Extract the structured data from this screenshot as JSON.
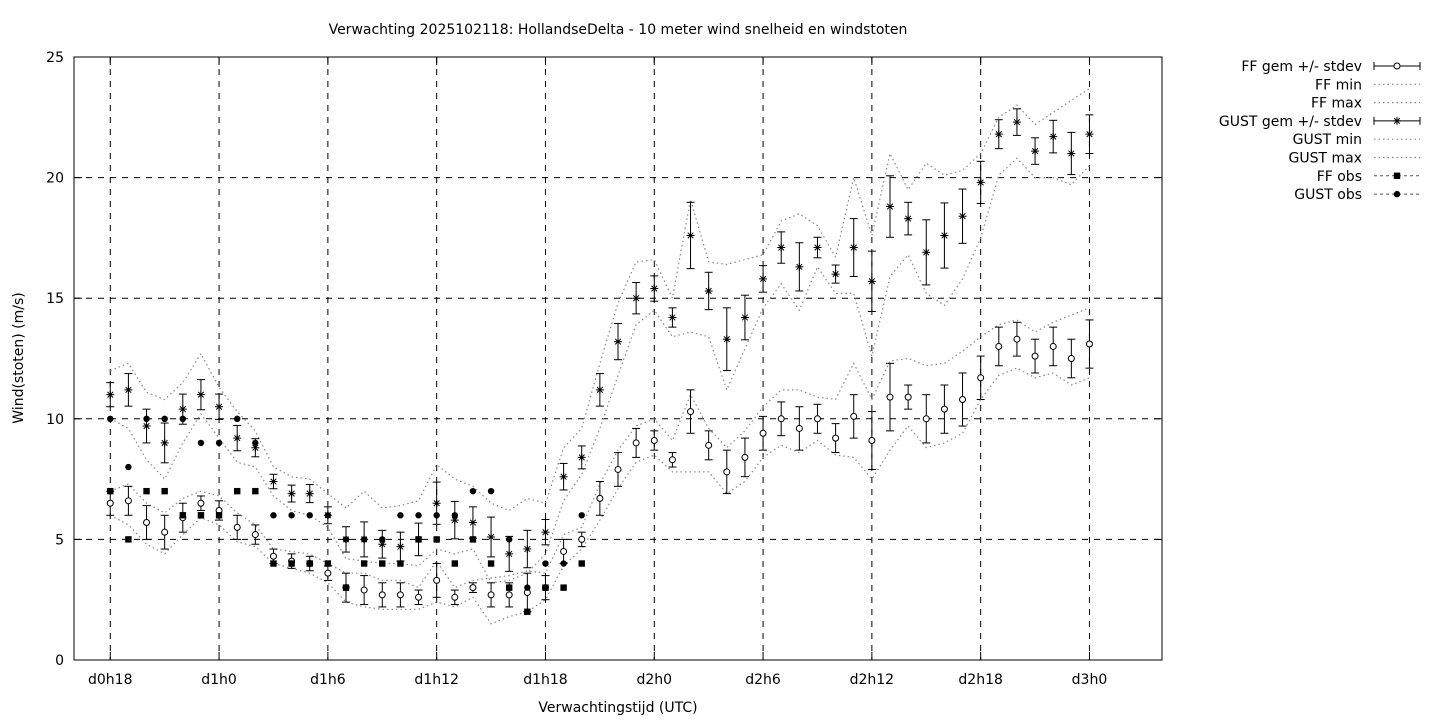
{
  "chart_data": {
    "type": "line",
    "title": "Verwachting 2025102118: HollandseDelta - 10 meter wind snelheid en windstoten",
    "xlabel": "Verwachtingstijd (UTC)",
    "ylabel": "Wind(stoten) (m/s)",
    "x_unit": "hours after d0h0",
    "xlim": [
      16,
      76
    ],
    "ylim": [
      0,
      25
    ],
    "y_ticks": [
      0,
      5,
      10,
      15,
      20,
      25
    ],
    "x_ticks": [
      {
        "x": 18,
        "label": "d0h18"
      },
      {
        "x": 24,
        "label": "d1h0"
      },
      {
        "x": 30,
        "label": "d1h6"
      },
      {
        "x": 36,
        "label": "d1h12"
      },
      {
        "x": 42,
        "label": "d1h18"
      },
      {
        "x": 48,
        "label": "d2h0"
      },
      {
        "x": 54,
        "label": "d2h6"
      },
      {
        "x": 60,
        "label": "d2h12"
      },
      {
        "x": 66,
        "label": "d2h18"
      },
      {
        "x": 72,
        "label": "d3h0"
      }
    ],
    "grid": true,
    "legend_position": "outside-right",
    "series": [
      {
        "name": "FF gem +/- stdev",
        "kind": "errorbar",
        "marker": "open-circle",
        "x": [
          18,
          19,
          20,
          21,
          22,
          23,
          24,
          25,
          26,
          27,
          28,
          29,
          30,
          31,
          32,
          33,
          34,
          35,
          36,
          37,
          38,
          39,
          40,
          41,
          42,
          43,
          44,
          45,
          46,
          47,
          48,
          49,
          50,
          51,
          52,
          53,
          54,
          55,
          56,
          57,
          58,
          59,
          60,
          61,
          62,
          63,
          64,
          65,
          66,
          67,
          68,
          69,
          70,
          71,
          72
        ],
        "mean": [
          6.5,
          6.6,
          5.7,
          5.3,
          5.9,
          6.5,
          6.2,
          5.5,
          5.2,
          4.3,
          4.1,
          4.0,
          3.6,
          3.0,
          2.9,
          2.7,
          2.7,
          2.6,
          3.3,
          2.6,
          3.0,
          2.7,
          2.7,
          2.8,
          3.0,
          4.5,
          5.0,
          6.7,
          7.9,
          9.0,
          9.1,
          8.3,
          10.3,
          8.9,
          7.8,
          8.4,
          9.4,
          10.0,
          9.6,
          10.0,
          9.2,
          10.1,
          9.1,
          10.9,
          10.9,
          10.0,
          10.4,
          10.8,
          11.7,
          13.0,
          13.3,
          12.6,
          13.0,
          12.5,
          13.1
        ],
        "stdev": [
          0.5,
          0.6,
          0.7,
          0.7,
          0.6,
          0.3,
          0.4,
          0.5,
          0.4,
          0.3,
          0.3,
          0.3,
          0.3,
          0.6,
          0.6,
          0.5,
          0.5,
          0.3,
          0.7,
          0.3,
          0.2,
          0.5,
          0.5,
          0.8,
          0.5,
          0.5,
          0.3,
          0.7,
          0.7,
          0.6,
          0.4,
          0.3,
          0.9,
          0.6,
          0.9,
          0.8,
          0.7,
          0.7,
          0.9,
          0.6,
          0.6,
          0.9,
          1.2,
          1.4,
          0.5,
          1.0,
          1.0,
          1.1,
          0.9,
          0.8,
          0.7,
          0.7,
          0.8,
          0.8,
          1.0
        ]
      },
      {
        "name": "FF min",
        "kind": "line",
        "style": "dotted",
        "x": [
          18,
          19,
          20,
          21,
          22,
          23,
          24,
          25,
          26,
          27,
          28,
          29,
          30,
          31,
          32,
          33,
          34,
          35,
          36,
          37,
          38,
          39,
          40,
          41,
          42,
          43,
          44,
          45,
          46,
          47,
          48,
          49,
          50,
          51,
          52,
          53,
          54,
          55,
          56,
          57,
          58,
          59,
          60,
          61,
          62,
          63,
          64,
          65,
          66,
          67,
          68,
          69,
          70,
          71,
          72
        ],
        "values": [
          6.0,
          5.6,
          4.8,
          4.4,
          5.2,
          5.9,
          5.6,
          4.9,
          4.7,
          4.0,
          3.8,
          3.6,
          3.2,
          2.4,
          2.2,
          2.1,
          2.1,
          2.1,
          2.4,
          2.2,
          2.6,
          1.5,
          1.8,
          2.0,
          2.5,
          3.9,
          4.6,
          5.8,
          7.1,
          8.2,
          8.5,
          7.8,
          7.8,
          7.8,
          6.9,
          7.4,
          8.4,
          8.9,
          8.6,
          9.1,
          8.5,
          8.4,
          7.5,
          8.7,
          9.7,
          8.8,
          9.0,
          9.4,
          10.8,
          11.8,
          12.1,
          11.7,
          11.9,
          11.4,
          11.7
        ]
      },
      {
        "name": "FF max",
        "kind": "line",
        "style": "dotted",
        "x": [
          18,
          19,
          20,
          21,
          22,
          23,
          24,
          25,
          26,
          27,
          28,
          29,
          30,
          31,
          32,
          33,
          34,
          35,
          36,
          37,
          38,
          39,
          40,
          41,
          42,
          43,
          44,
          45,
          46,
          47,
          48,
          49,
          50,
          51,
          52,
          53,
          54,
          55,
          56,
          57,
          58,
          59,
          60,
          61,
          62,
          63,
          64,
          65,
          66,
          67,
          68,
          69,
          70,
          71,
          72
        ],
        "values": [
          7.0,
          7.3,
          6.5,
          6.1,
          6.7,
          7.0,
          6.8,
          6.1,
          5.6,
          4.6,
          4.5,
          4.4,
          4.0,
          3.6,
          3.6,
          3.3,
          3.3,
          3.0,
          4.1,
          3.0,
          3.3,
          3.4,
          3.5,
          3.7,
          3.6,
          5.2,
          5.5,
          7.3,
          8.7,
          9.7,
          10.0,
          9.1,
          11.0,
          9.6,
          8.8,
          9.5,
          10.5,
          11.2,
          11.2,
          10.9,
          10.8,
          12.3,
          10.8,
          12.4,
          12.5,
          12.2,
          12.3,
          12.8,
          13.4,
          13.9,
          14.1,
          13.6,
          14.0,
          14.3,
          14.6
        ]
      },
      {
        "name": "GUST gem +/- stdev",
        "kind": "errorbar",
        "marker": "star",
        "x": [
          18,
          19,
          20,
          21,
          22,
          23,
          24,
          25,
          26,
          27,
          28,
          29,
          30,
          31,
          32,
          33,
          34,
          35,
          36,
          37,
          38,
          39,
          40,
          41,
          42,
          43,
          44,
          45,
          46,
          47,
          48,
          49,
          50,
          51,
          52,
          53,
          54,
          55,
          56,
          57,
          58,
          59,
          60,
          61,
          62,
          63,
          64,
          65,
          66,
          67,
          68,
          69,
          70,
          71,
          72
        ],
        "mean": [
          11.0,
          11.2,
          9.7,
          9.0,
          10.4,
          11.0,
          10.5,
          9.2,
          8.8,
          7.4,
          6.9,
          6.9,
          6.0,
          5.0,
          5.0,
          4.8,
          4.7,
          5.0,
          6.5,
          5.8,
          5.7,
          5.1,
          4.4,
          4.6,
          5.3,
          7.6,
          8.4,
          11.2,
          13.2,
          15.0,
          15.4,
          14.2,
          17.6,
          15.3,
          13.3,
          14.2,
          15.8,
          17.1,
          16.3,
          17.1,
          16.0,
          17.1,
          15.7,
          18.8,
          18.3,
          16.9,
          17.6,
          18.4,
          19.8,
          21.8,
          22.3,
          21.1,
          21.7,
          21.0,
          21.8
        ]
      },
      {
        "name": "GUST min",
        "kind": "line",
        "style": "dotted",
        "x": [
          18,
          19,
          20,
          21,
          22,
          23,
          24,
          25,
          26,
          27,
          28,
          29,
          30,
          31,
          32,
          33,
          34,
          35,
          36,
          37,
          38,
          39,
          40,
          41,
          42,
          43,
          44,
          45,
          46,
          47,
          48,
          49,
          50,
          51,
          52,
          53,
          54,
          55,
          56,
          57,
          58,
          59,
          60,
          61,
          62,
          63,
          64,
          65,
          66,
          67,
          68,
          69,
          70,
          71,
          72
        ],
        "values": [
          10.0,
          9.6,
          8.3,
          7.5,
          9.0,
          10.2,
          9.2,
          8.2,
          8.0,
          6.8,
          6.2,
          6.0,
          5.5,
          4.2,
          4.1,
          4.0,
          4.0,
          3.9,
          4.6,
          4.4,
          4.6,
          3.2,
          3.3,
          3.6,
          4.4,
          6.6,
          7.7,
          9.6,
          11.8,
          13.9,
          14.5,
          13.4,
          13.6,
          13.4,
          11.2,
          12.9,
          14.6,
          15.6,
          14.5,
          16.3,
          15.2,
          15.2,
          12.6,
          15.9,
          16.8,
          15.2,
          14.7,
          15.8,
          17.5,
          20.1,
          20.8,
          20.0,
          20.0,
          19.7,
          20.5
        ]
      },
      {
        "name": "GUST max",
        "kind": "line",
        "style": "dotted",
        "x": [
          18,
          19,
          20,
          21,
          22,
          23,
          24,
          25,
          26,
          27,
          28,
          29,
          30,
          31,
          32,
          33,
          34,
          35,
          36,
          37,
          38,
          39,
          40,
          41,
          42,
          43,
          44,
          45,
          46,
          47,
          48,
          49,
          50,
          51,
          52,
          53,
          54,
          55,
          56,
          57,
          58,
          59,
          60,
          61,
          62,
          63,
          64,
          65,
          66,
          67,
          68,
          69,
          70,
          71,
          72
        ],
        "values": [
          12.0,
          12.3,
          11.1,
          10.8,
          11.5,
          12.7,
          11.3,
          10.3,
          9.5,
          8.0,
          7.6,
          7.5,
          6.9,
          6.3,
          7.0,
          6.3,
          6.4,
          6.6,
          8.1,
          7.5,
          7.2,
          6.5,
          6.2,
          6.7,
          6.5,
          8.8,
          9.6,
          12.3,
          14.8,
          16.5,
          16.6,
          15.0,
          19.1,
          16.5,
          16.4,
          16.6,
          16.8,
          18.2,
          18.5,
          18.0,
          16.7,
          20.0,
          17.6,
          21.0,
          19.5,
          20.6,
          20.1,
          20.3,
          21.0,
          22.5,
          23.0,
          22.2,
          22.7,
          23.2,
          23.7
        ]
      },
      {
        "name": "FF obs",
        "kind": "points",
        "marker": "filled-square",
        "x": [
          18,
          19,
          20,
          21,
          22,
          23,
          24,
          25,
          26,
          27,
          28,
          29,
          30,
          31,
          32,
          33,
          34,
          35,
          36,
          37,
          38,
          39,
          40,
          41,
          42,
          43,
          44
        ],
        "values": [
          7,
          5,
          7,
          7,
          6,
          6,
          6,
          7,
          7,
          4,
          4,
          4,
          4,
          3,
          4,
          4,
          4,
          5,
          5,
          4,
          5,
          4,
          3,
          2,
          3,
          3,
          4
        ]
      },
      {
        "name": "GUST obs",
        "kind": "points",
        "marker": "filled-circle",
        "x": [
          18,
          19,
          20,
          21,
          22,
          23,
          24,
          25,
          26,
          27,
          28,
          29,
          30,
          31,
          32,
          33,
          34,
          35,
          36,
          37,
          38,
          39,
          40,
          41,
          42,
          43,
          44
        ],
        "values": [
          10,
          8,
          10,
          10,
          10,
          9,
          9,
          10,
          9,
          6,
          6,
          6,
          6,
          5,
          5,
          5,
          6,
          6,
          6,
          6,
          7,
          7,
          5,
          3,
          4,
          4,
          6
        ]
      }
    ]
  }
}
